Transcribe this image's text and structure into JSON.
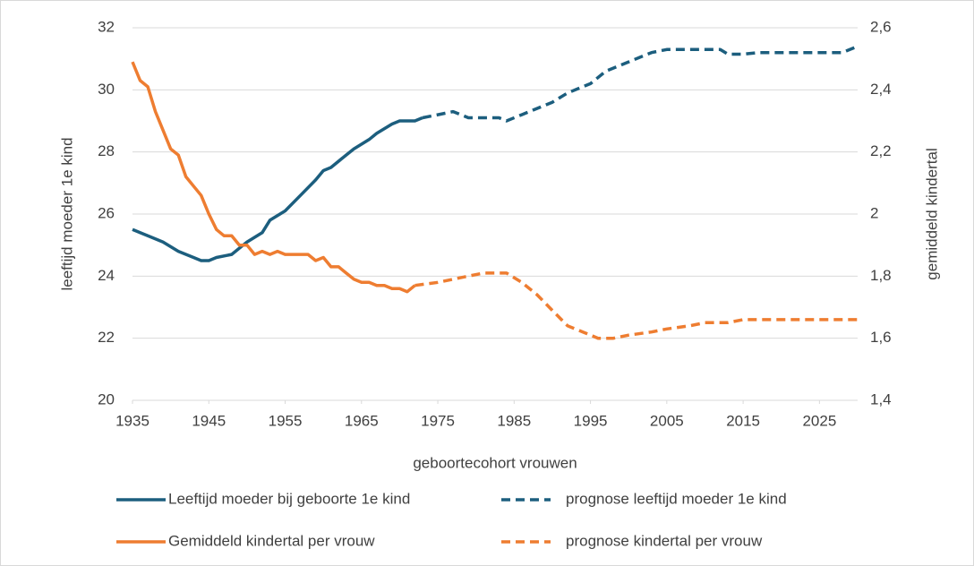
{
  "chart_data": {
    "type": "line",
    "xlabel": "geboortecohort vrouwen",
    "ylabel": "leeftijd  moeder 1e kind",
    "y2label": "gemiddeld kindertal",
    "xlim": [
      1935,
      2030
    ],
    "xticks": [
      1935,
      1945,
      1955,
      1965,
      1975,
      1985,
      1995,
      2005,
      2015,
      2025
    ],
    "ylim": [
      20,
      32
    ],
    "yticks": [
      20,
      22,
      24,
      26,
      28,
      30,
      32
    ],
    "y2lim": [
      1.4,
      2.6
    ],
    "y2ticks": [
      {
        "value": 1.4,
        "label": "1,4"
      },
      {
        "value": 1.6,
        "label": "1,6"
      },
      {
        "value": 1.8,
        "label": "1,8"
      },
      2,
      {
        "value": 2.2,
        "label": "2,2"
      },
      {
        "value": 2.4,
        "label": "2,4"
      },
      {
        "value": 2.6,
        "label": "2,6"
      }
    ],
    "grid": true,
    "legend": "bottom",
    "series": [
      {
        "name": "Leeftijd moeder bij geboorte 1e kind",
        "color": "#1c5e7e",
        "dashed": false,
        "x": [
          1935,
          1936,
          1937,
          1939,
          1941,
          1943,
          1944,
          1945,
          1946,
          1948,
          1950,
          1952,
          1953,
          1955,
          1957,
          1959,
          1960,
          1961,
          1963,
          1964,
          1966,
          1967,
          1969,
          1970,
          1972,
          1973
        ],
        "values": [
          25.5,
          25.4,
          25.3,
          25.1,
          24.8,
          24.6,
          24.5,
          24.5,
          24.6,
          24.7,
          25.1,
          25.4,
          25.8,
          26.1,
          26.6,
          27.1,
          27.4,
          27.5,
          27.9,
          28.1,
          28.4,
          28.6,
          28.9,
          29.0,
          29.0,
          29.1
        ]
      },
      {
        "name": "prognose leeftijd moeder 1e kind",
        "color": "#1c5e7e",
        "dashed": true,
        "x": [
          1973,
          1975,
          1977,
          1979,
          1983,
          1984,
          1986,
          1988,
          1990,
          1992,
          1995,
          1997,
          2000,
          2003,
          2005,
          2012,
          2013,
          2015,
          2017,
          2028,
          2030
        ],
        "values": [
          29.1,
          29.2,
          29.3,
          29.1,
          29.1,
          29.0,
          29.2,
          29.4,
          29.6,
          29.9,
          30.2,
          30.6,
          30.9,
          31.2,
          31.3,
          31.3,
          31.15,
          31.15,
          31.2,
          31.2,
          31.4
        ]
      },
      {
        "name": "Gemiddeld kindertal per vrouw",
        "color": "#ee7d31",
        "dashed": false,
        "axis": "y2",
        "x": [
          1935,
          1936,
          1937,
          1938,
          1940,
          1941,
          1942,
          1943,
          1944,
          1945,
          1946,
          1947,
          1948,
          1949,
          1950,
          1951,
          1952,
          1953,
          1954,
          1955,
          1958,
          1959,
          1960,
          1961,
          1962,
          1963,
          1964,
          1965,
          1966,
          1967,
          1968,
          1969,
          1970,
          1971,
          1972
        ],
        "values": [
          2.49,
          2.43,
          2.41,
          2.33,
          2.21,
          2.19,
          2.12,
          2.09,
          2.06,
          2.0,
          1.95,
          1.93,
          1.93,
          1.9,
          1.9,
          1.87,
          1.88,
          1.87,
          1.88,
          1.87,
          1.87,
          1.85,
          1.86,
          1.83,
          1.83,
          1.81,
          1.79,
          1.78,
          1.78,
          1.77,
          1.77,
          1.76,
          1.76,
          1.75,
          1.77
        ]
      },
      {
        "name": "prognose kindertal per vrouw",
        "color": "#ee7d31",
        "dashed": true,
        "axis": "y2",
        "x": [
          1972,
          1975,
          1977,
          1979,
          1981,
          1984,
          1986,
          1988,
          1990,
          1992,
          1994,
          1996,
          1998,
          2000,
          2003,
          2005,
          2008,
          2010,
          2013,
          2015,
          2030
        ],
        "values": [
          1.77,
          1.78,
          1.79,
          1.8,
          1.81,
          1.81,
          1.78,
          1.74,
          1.69,
          1.64,
          1.62,
          1.6,
          1.6,
          1.61,
          1.62,
          1.63,
          1.64,
          1.65,
          1.65,
          1.66,
          1.66
        ]
      }
    ]
  }
}
